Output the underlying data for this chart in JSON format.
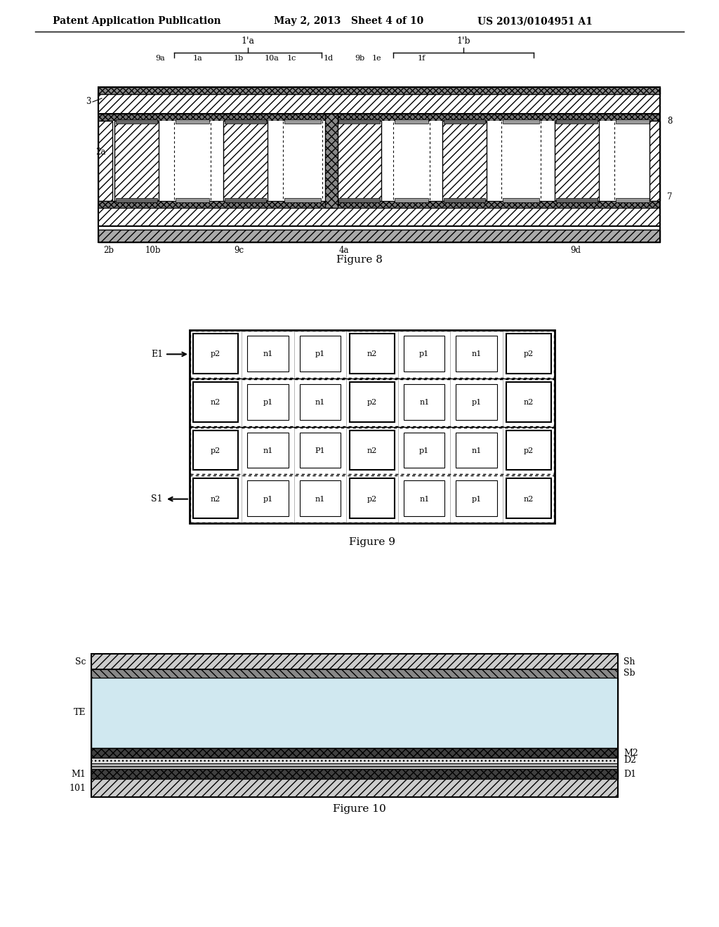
{
  "header_left": "Patent Application Publication",
  "header_mid": "May 2, 2013   Sheet 4 of 10",
  "header_right": "US 2013/0104951 A1",
  "fig8_caption": "Figure 8",
  "fig9_caption": "Figure 9",
  "fig10_caption": "Figure 10",
  "bg_color": "#ffffff",
  "line_color": "#000000"
}
